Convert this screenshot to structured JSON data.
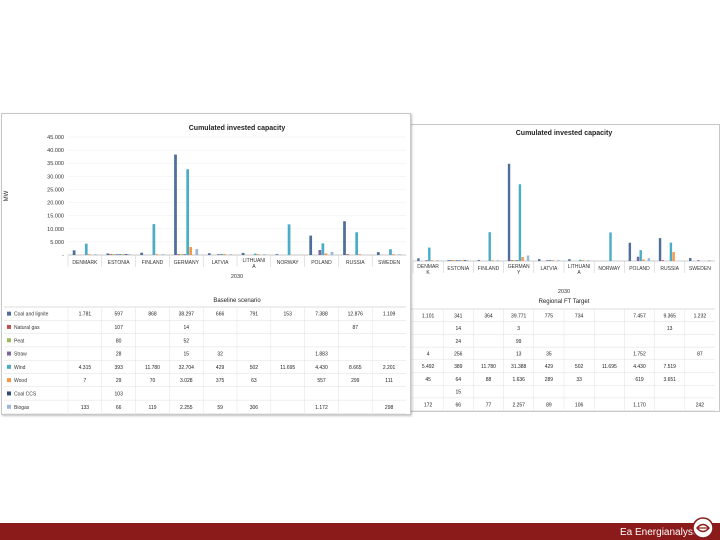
{
  "footer": {
    "brand": "Ea Energianalyse",
    "bar_color": "#8B1A1A"
  },
  "colors": {
    "coal": "#4F6E9C",
    "nat": "#C0504D",
    "peat": "#9BBB59",
    "straw": "#8064A2",
    "wind": "#4BACC6",
    "wood": "#F79646",
    "ccs": "#2C4D75",
    "biogas": "#9DB7D9"
  },
  "chart_data": [
    {
      "type": "bar",
      "title": "Cumulated invested capacity",
      "ylabel": "MW",
      "xlabel": "2030",
      "scenario": "Baseline scenario",
      "ylim": [
        0,
        45000
      ],
      "yticks": [
        "45.000",
        "40.000",
        "35.000",
        "30.000",
        "25.000",
        "20.000",
        "15.000",
        "10.000",
        "5.000",
        "-"
      ],
      "categories": [
        "DENMARK",
        "ESTONIA",
        "FINLAND",
        "GERMANY",
        "LATVIA",
        "LITHUANIA",
        "NORWAY",
        "POLAND",
        "RUSSIA",
        "SWEDEN"
      ],
      "category_labels": [
        "DENMARK",
        "ESTONIA",
        "FINLAND",
        "GERMANY",
        "LATVIA",
        "LITHUANI A",
        "NORWAY",
        "POLAND",
        "RUSSIA",
        "SWEDEN"
      ],
      "series": [
        {
          "name": "Coal and lignite",
          "color": "#4F6E9C",
          "values": [
            1781,
            597,
            868,
            38297,
            666,
            791,
            153,
            7388,
            12876,
            1109
          ],
          "cells": [
            "1.781",
            "597",
            "868",
            "38.297",
            "666",
            "791",
            "153",
            "7.388",
            "12.876",
            "1.109"
          ]
        },
        {
          "name": "Natural gas",
          "color": "#C0504D",
          "values": [
            0,
            107,
            0,
            14,
            0,
            0,
            0,
            0,
            87,
            0
          ],
          "cells": [
            "",
            "107",
            "",
            "14",
            "",
            "",
            "",
            "",
            "87",
            ""
          ]
        },
        {
          "name": "Peat",
          "color": "#9BBB59",
          "values": [
            0,
            80,
            0,
            52,
            0,
            0,
            0,
            0,
            0,
            0
          ],
          "cells": [
            "",
            "80",
            "",
            "52",
            "",
            "",
            "",
            "",
            "",
            ""
          ]
        },
        {
          "name": "Straw",
          "color": "#8064A2",
          "values": [
            0,
            28,
            0,
            15,
            32,
            0,
            0,
            1883,
            0,
            0
          ],
          "cells": [
            "",
            "28",
            "",
            "15",
            "32",
            "",
            "",
            "1.883",
            "",
            ""
          ]
        },
        {
          "name": "Wind",
          "color": "#4BACC6",
          "values": [
            4315,
            393,
            11780,
            32704,
            429,
            502,
            11695,
            4430,
            8665,
            2201
          ],
          "cells": [
            "4.315",
            "393",
            "11.780",
            "32.704",
            "429",
            "502",
            "11.695",
            "4.430",
            "8.665",
            "2.201"
          ]
        },
        {
          "name": "Wood",
          "color": "#F79646",
          "values": [
            7,
            29,
            70,
            3028,
            375,
            63,
            0,
            557,
            299,
            111
          ],
          "cells": [
            "7",
            "29",
            "70",
            "3.028",
            "375",
            "63",
            "",
            "557",
            "299",
            "111"
          ]
        },
        {
          "name": "Coal CCS",
          "color": "#2C4D75",
          "values": [
            0,
            103,
            0,
            0,
            0,
            0,
            0,
            0,
            0,
            0
          ],
          "cells": [
            "",
            "103",
            "",
            "",
            "",
            "",
            "",
            "",
            "",
            ""
          ]
        },
        {
          "name": "Biogas",
          "color": "#9DB7D9",
          "values": [
            133,
            66,
            119,
            2255,
            59,
            306,
            0,
            1172,
            0,
            298
          ],
          "cells": [
            "133",
            "66",
            "119",
            "2.255",
            "59",
            "306",
            "",
            "1.172",
            "",
            "298"
          ]
        }
      ]
    },
    {
      "type": "bar",
      "title": "Cumulated invested capacity",
      "xlabel": "2030",
      "scenario": "Regional FT Target",
      "ylim": [
        0,
        45000
      ],
      "categories": [
        "DENMARK",
        "ESTONIA",
        "FINLAND",
        "GERMANY",
        "LATVIA",
        "LITHUANIA",
        "NORWAY",
        "POLAND",
        "RUSSIA",
        "SWEDEN"
      ],
      "category_labels": [
        "DENMAR K",
        "ESTONIA",
        "FINLAND",
        "GERMAN Y",
        "LATVIA",
        "LITHUANI A",
        "NORWAY",
        "POLAND",
        "RUSSIA",
        "SWEDEN"
      ],
      "series": [
        {
          "name": "Coal and lignite",
          "color": "#4F6E9C",
          "values": [
            1101,
            341,
            364,
            39771,
            775,
            734,
            0,
            7457,
            9365,
            1232
          ],
          "cells": [
            "1.101",
            "341",
            "364",
            "39.771",
            "775",
            "734",
            "",
            "7.457",
            "9.365",
            "1.232"
          ]
        },
        {
          "name": "Natural gas",
          "color": "#C0504D",
          "values": [
            0,
            14,
            0,
            3,
            0,
            0,
            0,
            0,
            13,
            0
          ],
          "cells": [
            "",
            "14",
            "",
            "3",
            "",
            "",
            "",
            "",
            "13",
            ""
          ]
        },
        {
          "name": "Peat",
          "color": "#9BBB59",
          "values": [
            0,
            24,
            0,
            99,
            0,
            0,
            0,
            0,
            0,
            0
          ],
          "cells": [
            "",
            "24",
            "",
            "99",
            "",
            "",
            "",
            "",
            "",
            ""
          ]
        },
        {
          "name": "Straw",
          "color": "#8064A2",
          "values": [
            4,
            256,
            0,
            13,
            35,
            0,
            0,
            1752,
            0,
            87
          ],
          "cells": [
            "4",
            "256",
            "",
            "13",
            "35",
            "",
            "",
            "1.752",
            "",
            "87"
          ]
        },
        {
          "name": "Wind",
          "color": "#4BACC6",
          "values": [
            5492,
            389,
            11780,
            31388,
            429,
            502,
            11695,
            4430,
            7519,
            0
          ],
          "cells": [
            "5.492",
            "389",
            "11.780",
            "31.388",
            "429",
            "502",
            "11.695",
            "4.430",
            "7.519",
            ""
          ]
        },
        {
          "name": "Wood",
          "color": "#F79646",
          "values": [
            45,
            64,
            88,
            1636,
            289,
            33,
            0,
            619,
            3651,
            0
          ],
          "cells": [
            "45",
            "64",
            "88",
            "1.636",
            "289",
            "33",
            "",
            "619",
            "3.651",
            ""
          ]
        },
        {
          "name": "Coal CCS",
          "color": "#2C4D75",
          "values": [
            0,
            15,
            0,
            0,
            0,
            0,
            0,
            0,
            0,
            0
          ],
          "cells": [
            "",
            "15",
            "",
            "",
            "",
            "",
            "",
            "",
            "",
            ""
          ]
        },
        {
          "name": "Biogas",
          "color": "#9DB7D9",
          "values": [
            172,
            66,
            77,
            2257,
            89,
            106,
            0,
            1170,
            0,
            242
          ],
          "cells": [
            "172",
            "66",
            "77",
            "2.257",
            "89",
            "106",
            "",
            "1.170",
            "",
            "242"
          ]
        }
      ]
    }
  ]
}
